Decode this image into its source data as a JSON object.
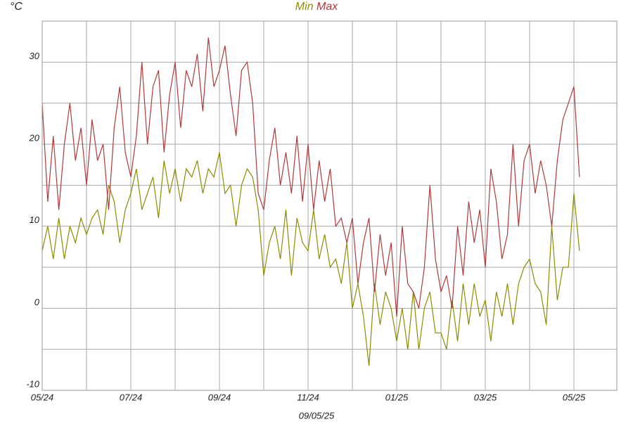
{
  "chart_data": {
    "type": "line",
    "ylabel": "°C",
    "xlabel": "09/05/25",
    "categories": [
      "05/24",
      null,
      null,
      null,
      null,
      null,
      null,
      null,
      null,
      null,
      null,
      null,
      null,
      null,
      null,
      null,
      "07/24",
      null,
      null,
      null,
      null,
      null,
      null,
      null,
      null,
      null,
      null,
      null,
      null,
      null,
      null,
      null,
      "09/24",
      null,
      null,
      null,
      null,
      null,
      null,
      null,
      null,
      null,
      null,
      null,
      null,
      null,
      null,
      null,
      "11/24",
      null,
      null,
      null,
      null,
      null,
      null,
      null,
      null,
      null,
      null,
      null,
      null,
      null,
      null,
      null,
      "01/25",
      null,
      null,
      null,
      null,
      null,
      null,
      null,
      null,
      null,
      null,
      null,
      null,
      null,
      null,
      null,
      "03/25",
      null,
      null,
      null,
      null,
      null,
      null,
      null,
      null,
      null,
      null,
      null,
      null,
      null,
      null,
      null,
      "05/25",
      null
    ],
    "series": [
      {
        "name": "Min",
        "color": "#8c8c00",
        "values": [
          7,
          10,
          6,
          11,
          6,
          10,
          8,
          11,
          9,
          11,
          12,
          9,
          15,
          13,
          8,
          12,
          14,
          17,
          12,
          14,
          16,
          11,
          18,
          14,
          17,
          13,
          17,
          16,
          18,
          14,
          17,
          16,
          19,
          14,
          15,
          10,
          15,
          17,
          16,
          12,
          4,
          8,
          10,
          6,
          12,
          4,
          11,
          8,
          7,
          12,
          6,
          9,
          5,
          6,
          3,
          8,
          0,
          3,
          -1,
          -7,
          3,
          -2,
          2,
          0,
          -4,
          0,
          -5,
          2,
          -5,
          0,
          2,
          -3,
          -3,
          -5,
          1,
          -4,
          3,
          -2,
          3,
          -1,
          1,
          -4,
          2,
          -1,
          3,
          -2,
          3,
          5,
          6,
          3,
          2,
          -2,
          10,
          1,
          5,
          5,
          14,
          7
        ]
      },
      {
        "name": "Max",
        "color": "#b03a3a",
        "values": [
          25,
          13,
          21,
          12,
          20,
          25,
          18,
          22,
          15,
          23,
          18,
          20,
          12,
          22,
          27,
          19,
          16,
          21,
          30,
          20,
          27,
          29,
          19,
          26,
          30,
          22,
          29,
          27,
          31,
          24,
          33,
          27,
          29,
          32,
          26,
          21,
          29,
          30,
          25,
          14,
          12,
          18,
          22,
          15,
          19,
          14,
          21,
          13,
          20,
          12,
          18,
          13,
          17,
          10,
          11,
          8,
          11,
          3,
          8,
          11,
          2,
          9,
          4,
          8,
          -1,
          10,
          3,
          2,
          0,
          5,
          15,
          6,
          2,
          4,
          0,
          10,
          4,
          13,
          8,
          12,
          5,
          17,
          13,
          6,
          9,
          20,
          10,
          18,
          20,
          14,
          18,
          15,
          10,
          18,
          23,
          25,
          27,
          16
        ]
      }
    ],
    "ylim": [
      -10,
      35
    ],
    "yticks": [
      -10,
      0,
      10,
      20,
      30
    ],
    "grid": true
  }
}
